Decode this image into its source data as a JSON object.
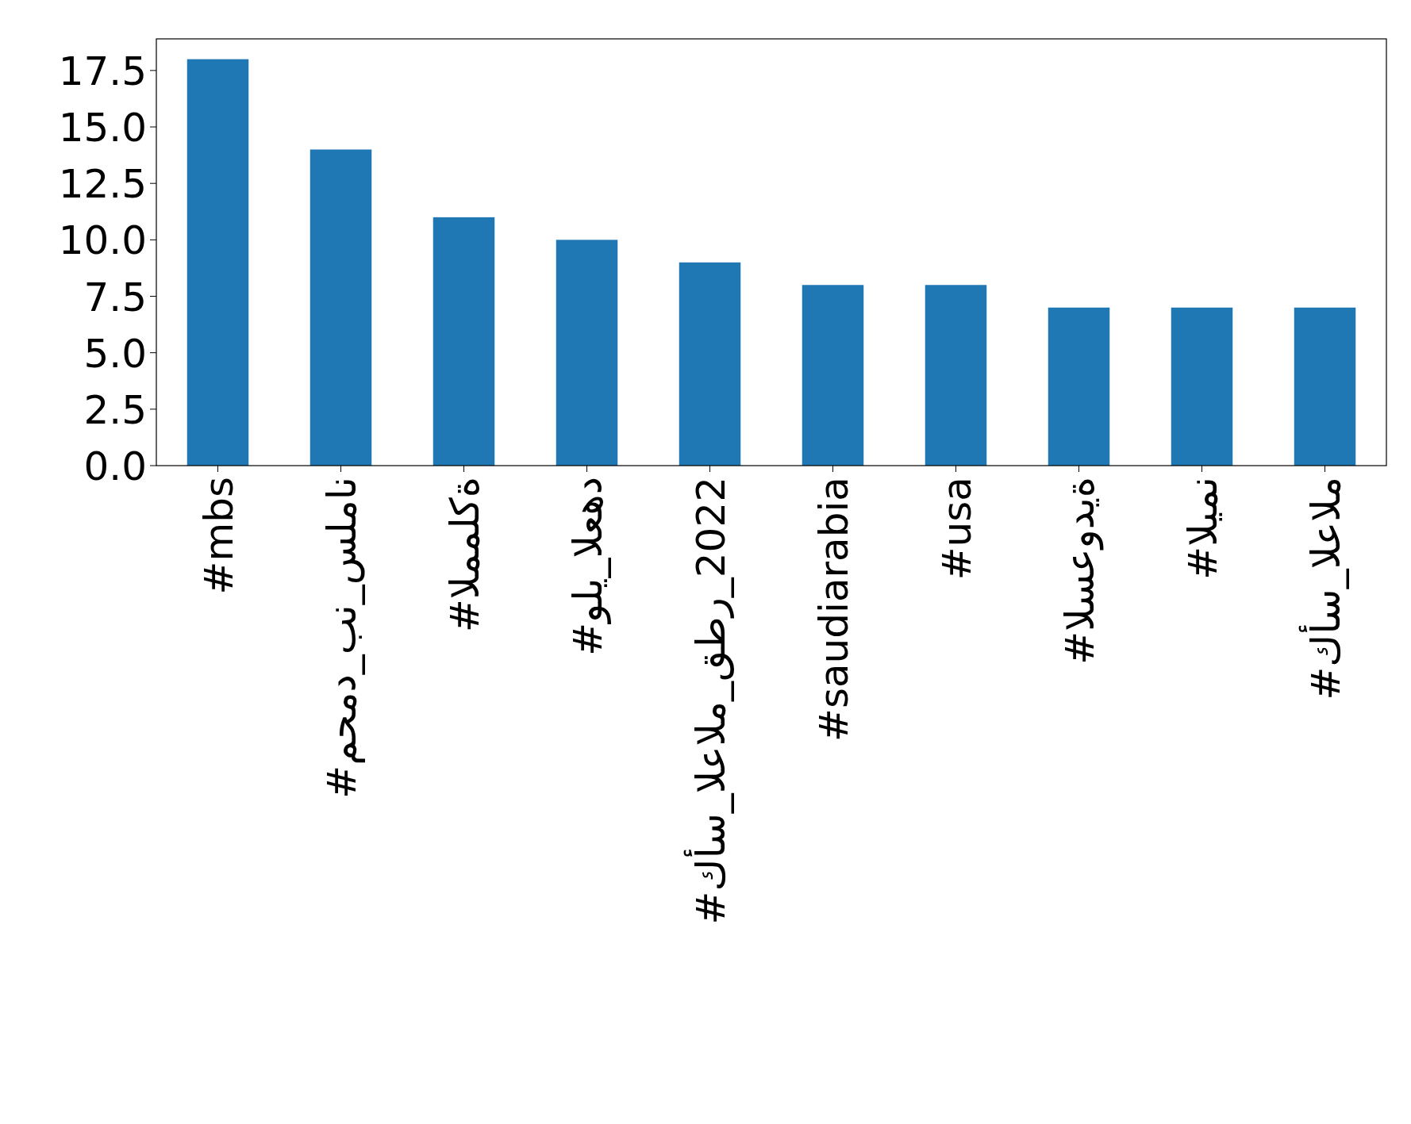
{
  "chart_data": {
    "type": "bar",
    "categories": [
      "#mbs",
      "#محمد_بن_سلمان",
      "#المملكة",
      "#ولي_العهد",
      "#كأس_العالم_قطر_2022",
      "#saudiarabia",
      "#usa",
      "#السعودية",
      "#اليمن",
      "#كأس_العالم"
    ],
    "values": [
      18,
      14,
      11,
      10,
      9,
      8,
      8,
      7,
      7,
      7
    ],
    "color": "#1f77b4",
    "ylim": [
      0,
      18.9
    ],
    "yticks": [
      {
        "value": 0,
        "label": "0.0"
      },
      {
        "value": 2.5,
        "label": "2.5"
      },
      {
        "value": 5,
        "label": "5.0"
      },
      {
        "value": 7.5,
        "label": "7.5"
      },
      {
        "value": 10,
        "label": "10.0"
      },
      {
        "value": 12.5,
        "label": "12.5"
      },
      {
        "value": 15,
        "label": "15.0"
      },
      {
        "value": 17.5,
        "label": "17.5"
      }
    ]
  }
}
